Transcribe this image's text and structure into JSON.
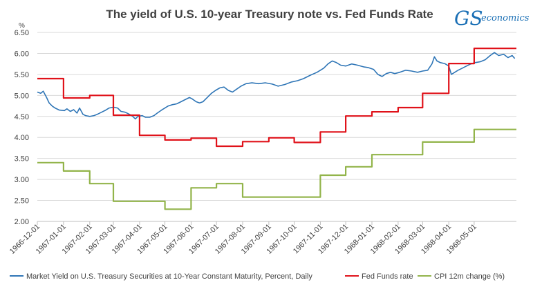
{
  "logo": {
    "mark": "GS",
    "word": "economics"
  },
  "chart_data": {
    "type": "line",
    "title": "The yield of U.S. 10-year Treasury note vs. Fed Funds Rate",
    "ylabel": "%",
    "xlabel": "",
    "ylim": [
      2.0,
      6.5
    ],
    "yticks": [
      "2.00",
      "2.50",
      "3.00",
      "3.50",
      "4.00",
      "4.50",
      "5.00",
      "5.50",
      "6.00",
      "6.50"
    ],
    "xlim": [
      "1966-12-01",
      "1968-06-20"
    ],
    "xticks": [
      "1966-12-01",
      "1967-01-01",
      "1967-02-01",
      "1967-03-01",
      "1967-04-01",
      "1967-05-01",
      "1967-06-01",
      "1967-07-01",
      "1967-08-01",
      "1967-09-01",
      "1967-10-01",
      "1967-11-01",
      "1967-12-01",
      "1968-01-01",
      "1968-02-01",
      "1968-03-01",
      "1968-04-01",
      "1968-05-01"
    ],
    "grid": true,
    "legend": "bottom",
    "series": [
      {
        "name": "Market Yield on U.S. Treasury Securities at 10-Year Constant Maturity, Percent, Daily",
        "color": "#2e75b6",
        "points": [
          [
            "1966-12-01",
            5.08
          ],
          [
            "1966-12-05",
            5.05
          ],
          [
            "1966-12-08",
            5.1
          ],
          [
            "1966-12-12",
            4.95
          ],
          [
            "1966-12-15",
            4.82
          ],
          [
            "1966-12-19",
            4.74
          ],
          [
            "1966-12-22",
            4.7
          ],
          [
            "1966-12-27",
            4.65
          ],
          [
            "1967-01-02",
            4.64
          ],
          [
            "1967-01-05",
            4.68
          ],
          [
            "1967-01-09",
            4.62
          ],
          [
            "1967-01-13",
            4.66
          ],
          [
            "1967-01-17",
            4.58
          ],
          [
            "1967-01-20",
            4.7
          ],
          [
            "1967-01-24",
            4.55
          ],
          [
            "1967-01-27",
            4.52
          ],
          [
            "1967-02-01",
            4.5
          ],
          [
            "1967-02-06",
            4.52
          ],
          [
            "1967-02-10",
            4.55
          ],
          [
            "1967-02-15",
            4.6
          ],
          [
            "1967-02-20",
            4.65
          ],
          [
            "1967-02-24",
            4.7
          ],
          [
            "1967-03-01",
            4.72
          ],
          [
            "1967-03-06",
            4.7
          ],
          [
            "1967-03-10",
            4.62
          ],
          [
            "1967-03-15",
            4.6
          ],
          [
            "1967-03-20",
            4.55
          ],
          [
            "1967-03-24",
            4.5
          ],
          [
            "1967-03-27",
            4.44
          ],
          [
            "1967-03-30",
            4.5
          ],
          [
            "1967-04-04",
            4.52
          ],
          [
            "1967-04-08",
            4.48
          ],
          [
            "1967-04-13",
            4.48
          ],
          [
            "1967-04-18",
            4.52
          ],
          [
            "1967-04-22",
            4.58
          ],
          [
            "1967-04-27",
            4.65
          ],
          [
            "1967-05-01",
            4.7
          ],
          [
            "1967-05-05",
            4.75
          ],
          [
            "1967-05-10",
            4.78
          ],
          [
            "1967-05-15",
            4.8
          ],
          [
            "1967-05-20",
            4.85
          ],
          [
            "1967-05-25",
            4.9
          ],
          [
            "1967-05-30",
            4.95
          ],
          [
            "1967-06-02",
            4.92
          ],
          [
            "1967-06-07",
            4.85
          ],
          [
            "1967-06-11",
            4.82
          ],
          [
            "1967-06-15",
            4.85
          ],
          [
            "1967-06-20",
            4.95
          ],
          [
            "1967-06-25",
            5.05
          ],
          [
            "1967-06-30",
            5.12
          ],
          [
            "1967-07-05",
            5.18
          ],
          [
            "1967-07-10",
            5.2
          ],
          [
            "1967-07-15",
            5.12
          ],
          [
            "1967-07-20",
            5.08
          ],
          [
            "1967-07-25",
            5.15
          ],
          [
            "1967-07-30",
            5.22
          ],
          [
            "1967-08-05",
            5.28
          ],
          [
            "1967-08-12",
            5.3
          ],
          [
            "1967-08-20",
            5.28
          ],
          [
            "1967-08-28",
            5.3
          ],
          [
            "1967-09-05",
            5.27
          ],
          [
            "1967-09-12",
            5.22
          ],
          [
            "1967-09-20",
            5.26
          ],
          [
            "1967-09-28",
            5.32
          ],
          [
            "1967-10-05",
            5.35
          ],
          [
            "1967-10-12",
            5.4
          ],
          [
            "1967-10-20",
            5.48
          ],
          [
            "1967-10-28",
            5.55
          ],
          [
            "1967-11-05",
            5.65
          ],
          [
            "1967-11-10",
            5.75
          ],
          [
            "1967-11-15",
            5.82
          ],
          [
            "1967-11-20",
            5.78
          ],
          [
            "1967-11-25",
            5.72
          ],
          [
            "1967-12-01",
            5.7
          ],
          [
            "1967-12-08",
            5.75
          ],
          [
            "1967-12-15",
            5.72
          ],
          [
            "1967-12-22",
            5.68
          ],
          [
            "1967-12-28",
            5.66
          ],
          [
            "1968-01-03",
            5.62
          ],
          [
            "1968-01-08",
            5.5
          ],
          [
            "1968-01-13",
            5.45
          ],
          [
            "1968-01-18",
            5.52
          ],
          [
            "1968-01-23",
            5.55
          ],
          [
            "1968-01-28",
            5.52
          ],
          [
            "1968-02-03",
            5.55
          ],
          [
            "1968-02-10",
            5.6
          ],
          [
            "1968-02-17",
            5.58
          ],
          [
            "1968-02-24",
            5.55
          ],
          [
            "1968-03-01",
            5.58
          ],
          [
            "1968-03-07",
            5.6
          ],
          [
            "1968-03-12",
            5.75
          ],
          [
            "1968-03-15",
            5.92
          ],
          [
            "1968-03-18",
            5.82
          ],
          [
            "1968-03-22",
            5.78
          ],
          [
            "1968-03-27",
            5.76
          ],
          [
            "1968-04-01",
            5.7
          ],
          [
            "1968-04-04",
            5.5
          ],
          [
            "1968-04-08",
            5.55
          ],
          [
            "1968-04-12",
            5.6
          ],
          [
            "1968-04-17",
            5.65
          ],
          [
            "1968-04-22",
            5.7
          ],
          [
            "1968-04-27",
            5.75
          ],
          [
            "1968-05-02",
            5.78
          ],
          [
            "1968-05-08",
            5.8
          ],
          [
            "1968-05-14",
            5.85
          ],
          [
            "1968-05-20",
            5.95
          ],
          [
            "1968-05-25",
            6.02
          ],
          [
            "1968-05-30",
            5.95
          ],
          [
            "1968-06-05",
            5.98
          ],
          [
            "1968-06-10",
            5.9
          ],
          [
            "1968-06-15",
            5.95
          ],
          [
            "1968-06-18",
            5.88
          ]
        ]
      },
      {
        "name": "Fed Funds rate",
        "color": "#e0121a",
        "step": true,
        "points": [
          [
            "1966-12-01",
            5.4
          ],
          [
            "1967-01-01",
            4.94
          ],
          [
            "1967-02-01",
            5.0
          ],
          [
            "1967-03-01",
            4.53
          ],
          [
            "1967-04-01",
            4.05
          ],
          [
            "1967-05-01",
            3.94
          ],
          [
            "1967-06-01",
            3.98
          ],
          [
            "1967-07-01",
            3.79
          ],
          [
            "1967-08-01",
            3.9
          ],
          [
            "1967-09-01",
            3.99
          ],
          [
            "1967-10-01",
            3.88
          ],
          [
            "1967-11-01",
            4.13
          ],
          [
            "1967-12-01",
            4.51
          ],
          [
            "1968-01-01",
            4.61
          ],
          [
            "1968-02-01",
            4.71
          ],
          [
            "1968-03-01",
            5.05
          ],
          [
            "1968-04-01",
            5.76
          ],
          [
            "1968-05-01",
            6.12
          ],
          [
            "1968-06-20",
            6.12
          ]
        ]
      },
      {
        "name": "CPI 12m change (%)",
        "color": "#92b44a",
        "step": true,
        "points": [
          [
            "1966-12-01",
            3.4
          ],
          [
            "1967-01-01",
            3.2
          ],
          [
            "1967-02-01",
            2.9
          ],
          [
            "1967-03-01",
            2.48
          ],
          [
            "1967-04-01",
            2.48
          ],
          [
            "1967-05-01",
            2.29
          ],
          [
            "1967-06-01",
            2.8
          ],
          [
            "1967-07-01",
            2.9
          ],
          [
            "1967-08-01",
            2.58
          ],
          [
            "1967-09-01",
            2.58
          ],
          [
            "1967-10-01",
            2.58
          ],
          [
            "1967-11-01",
            3.1
          ],
          [
            "1967-12-01",
            3.3
          ],
          [
            "1968-01-01",
            3.59
          ],
          [
            "1968-02-01",
            3.59
          ],
          [
            "1968-03-01",
            3.89
          ],
          [
            "1968-04-01",
            3.89
          ],
          [
            "1968-05-01",
            4.19
          ],
          [
            "1968-06-20",
            4.19
          ]
        ]
      }
    ]
  }
}
